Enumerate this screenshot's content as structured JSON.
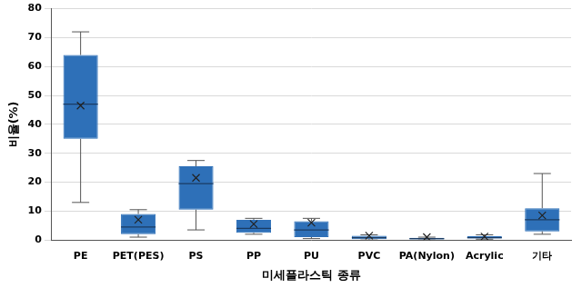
{
  "chart_data": {
    "type": "box",
    "x_label": "미세플라스틱 종류",
    "y_label": "비율(%)",
    "categories": [
      "PE",
      "PET(PES)",
      "PS",
      "PP",
      "PU",
      "PVC",
      "PA(Nylon)",
      "Acrylic",
      "기타"
    ],
    "min": [
      13,
      1,
      3.5,
      2,
      0.5,
      0,
      0,
      0.3,
      2
    ],
    "q1": [
      35,
      2,
      10.5,
      2.5,
      1,
      0.3,
      0.2,
      0.5,
      3
    ],
    "median": [
      47,
      4.5,
      19.5,
      4,
      3.5,
      0.8,
      0.5,
      0.8,
      7
    ],
    "q3": [
      64,
      9,
      25.5,
      7,
      6.5,
      1.5,
      0.8,
      1.3,
      11
    ],
    "max": [
      72,
      10.5,
      27.5,
      7.5,
      7.5,
      1.8,
      1,
      1.8,
      23
    ],
    "mean": [
      46.5,
      7,
      21.5,
      5.5,
      6,
      1.5,
      1,
      1.2,
      8.5
    ],
    "color": "#2e70b8",
    "marker": "x",
    "ylim": [
      0,
      80
    ],
    "yticks": [
      0,
      10,
      20,
      30,
      40,
      50,
      60,
      70,
      80
    ],
    "grid": true
  }
}
